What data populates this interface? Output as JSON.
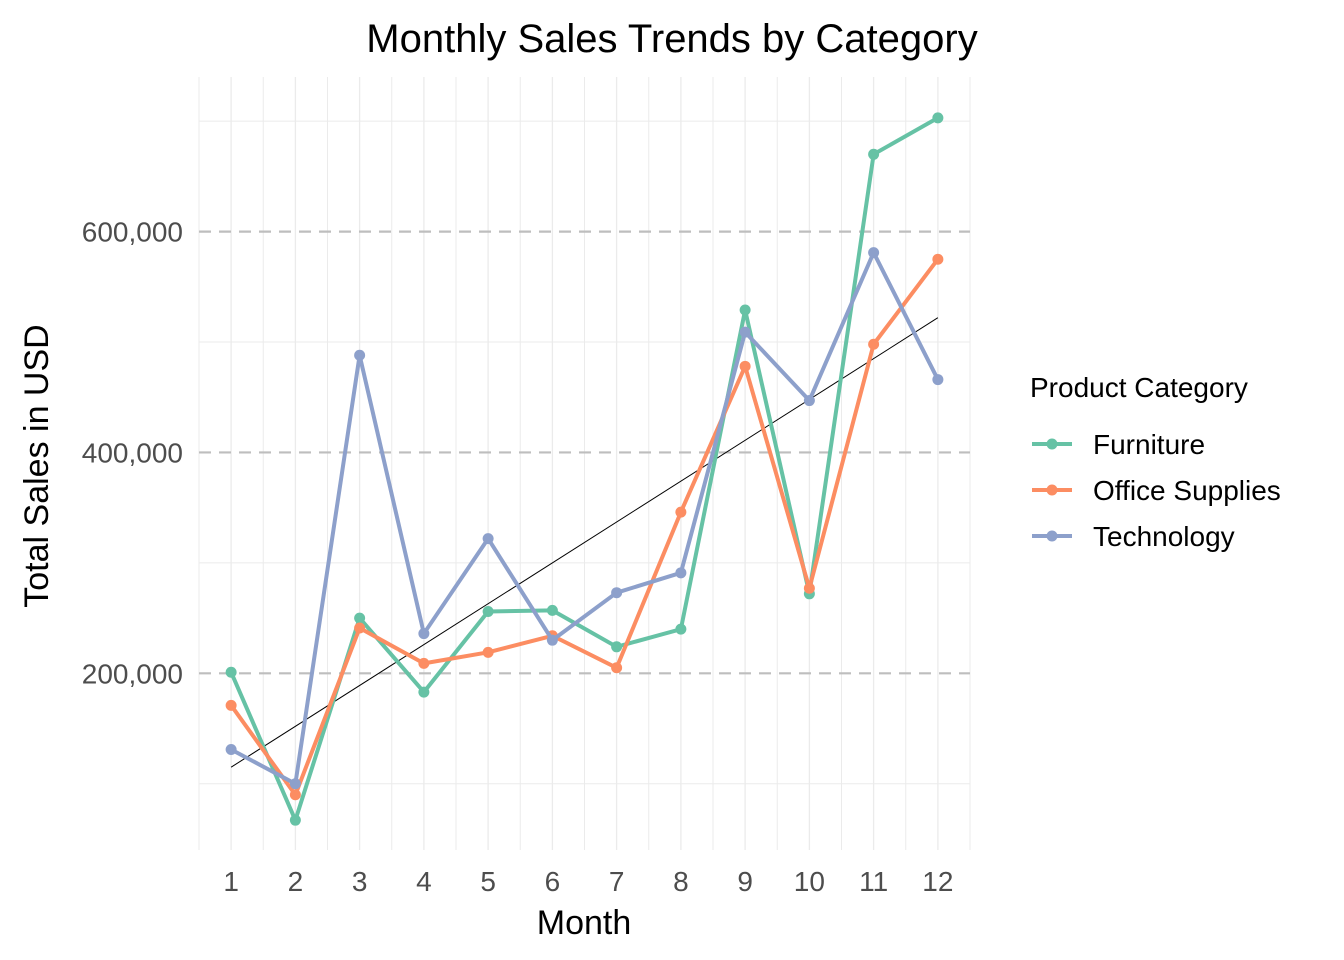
{
  "chart_data": {
    "type": "line",
    "title": "Monthly Sales Trends by Category",
    "xlabel": "Month",
    "ylabel": "Total Sales in USD",
    "x": [
      1,
      2,
      3,
      4,
      5,
      6,
      7,
      8,
      9,
      10,
      11,
      12
    ],
    "x_tick_labels": [
      "1",
      "2",
      "3",
      "4",
      "5",
      "6",
      "7",
      "8",
      "9",
      "10",
      "11",
      "12"
    ],
    "y_ticks": [
      200000,
      400000,
      600000
    ],
    "y_tick_labels": [
      "200,000",
      "400,000",
      "600,000"
    ],
    "xlim": [
      0.5,
      12.5
    ],
    "ylim": [
      40000,
      740000
    ],
    "grid": true,
    "legend": {
      "title": "Product Category",
      "placement": "right"
    },
    "series": [
      {
        "name": "Furniture",
        "color": "#66c2a5",
        "values": [
          201000,
          67000,
          250000,
          183000,
          256000,
          257000,
          224000,
          240000,
          529000,
          272000,
          670000,
          703000
        ]
      },
      {
        "name": "Office Supplies",
        "color": "#fc8d62",
        "values": [
          171000,
          90000,
          241000,
          209000,
          219000,
          234000,
          205000,
          346000,
          478000,
          277000,
          498000,
          575000
        ]
      },
      {
        "name": "Technology",
        "color": "#8da0cb",
        "values": [
          131000,
          100000,
          488000,
          236000,
          322000,
          230000,
          273000,
          291000,
          509000,
          447000,
          581000,
          466000
        ]
      }
    ],
    "trend_line": {
      "color": "#000000",
      "start": [
        1,
        115000
      ],
      "end": [
        12,
        522000
      ]
    }
  }
}
